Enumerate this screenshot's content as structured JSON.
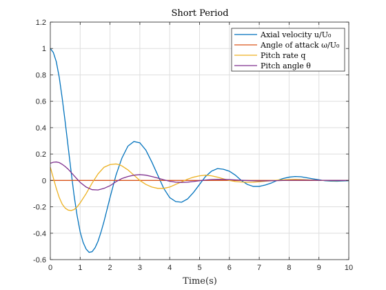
{
  "chart_data": {
    "type": "line",
    "title": "Short Period",
    "xlabel": "Time(s)",
    "ylabel": "",
    "xlim": [
      0,
      10
    ],
    "ylim": [
      -0.6,
      1.2
    ],
    "xticks": [
      0,
      1,
      2,
      3,
      4,
      5,
      6,
      7,
      8,
      9,
      10
    ],
    "yticks": [
      -0.6,
      -0.4,
      -0.2,
      0,
      0.2,
      0.4,
      0.6,
      0.8,
      1,
      1.2
    ],
    "xtick_labels": [
      "0",
      "1",
      "2",
      "3",
      "4",
      "5",
      "6",
      "7",
      "8",
      "9",
      "10"
    ],
    "ytick_labels": [
      "-0.6",
      "-0.4",
      "-0.2",
      "0",
      "0.2",
      "0.4",
      "0.6",
      "0.8",
      "1",
      "1.2"
    ],
    "grid": true,
    "legend_position": "top-right",
    "series": [
      {
        "name": "Axial velocity u/U₀",
        "color": "#0072BD",
        "x": [
          0,
          0.1,
          0.2,
          0.3,
          0.4,
          0.5,
          0.6,
          0.7,
          0.8,
          0.9,
          1.0,
          1.1,
          1.2,
          1.3,
          1.4,
          1.5,
          1.6,
          1.7,
          1.8,
          1.9,
          2.0,
          2.2,
          2.4,
          2.6,
          2.8,
          3.0,
          3.2,
          3.4,
          3.6,
          3.8,
          4.0,
          4.2,
          4.4,
          4.6,
          4.8,
          5.0,
          5.2,
          5.4,
          5.6,
          5.8,
          6.0,
          6.2,
          6.4,
          6.6,
          6.8,
          7.0,
          7.2,
          7.4,
          7.6,
          7.8,
          8.0,
          8.2,
          8.4,
          8.6,
          8.8,
          9.0,
          9.2,
          9.4,
          9.6,
          9.8,
          10.0
        ],
        "y": [
          1.0,
          0.97,
          0.9,
          0.78,
          0.62,
          0.44,
          0.25,
          0.06,
          -0.12,
          -0.27,
          -0.39,
          -0.47,
          -0.52,
          -0.545,
          -0.54,
          -0.51,
          -0.46,
          -0.39,
          -0.31,
          -0.22,
          -0.13,
          0.04,
          0.17,
          0.26,
          0.295,
          0.285,
          0.23,
          0.14,
          0.04,
          -0.06,
          -0.13,
          -0.16,
          -0.165,
          -0.14,
          -0.09,
          -0.03,
          0.03,
          0.07,
          0.09,
          0.085,
          0.07,
          0.04,
          0.0,
          -0.03,
          -0.045,
          -0.045,
          -0.035,
          -0.02,
          0.0,
          0.015,
          0.025,
          0.03,
          0.028,
          0.02,
          0.012,
          0.005,
          -0.002,
          -0.005,
          -0.006,
          -0.004,
          -0.002
        ]
      },
      {
        "name": "Angle of attack ω/U₀",
        "color": "#D95319",
        "x": [
          0,
          10
        ],
        "y": [
          0,
          0
        ]
      },
      {
        "name": "Pitch rate q",
        "color": "#EDB120",
        "x": [
          0,
          0.1,
          0.2,
          0.3,
          0.4,
          0.5,
          0.6,
          0.7,
          0.8,
          0.9,
          1.0,
          1.2,
          1.4,
          1.6,
          1.8,
          2.0,
          2.2,
          2.3,
          2.4,
          2.6,
          2.8,
          3.0,
          3.2,
          3.4,
          3.6,
          3.8,
          4.0,
          4.2,
          4.4,
          4.6,
          4.8,
          5.0,
          5.2,
          5.4,
          5.6,
          5.8,
          6.0,
          6.2,
          6.4,
          6.6,
          6.8,
          7.0,
          7.2,
          7.4,
          7.6,
          7.8,
          8.0,
          8.2,
          8.4,
          8.6,
          8.8,
          9.0,
          9.5,
          10.0
        ],
        "y": [
          0.1,
          0.02,
          -0.06,
          -0.13,
          -0.18,
          -0.21,
          -0.225,
          -0.228,
          -0.22,
          -0.2,
          -0.17,
          -0.1,
          -0.02,
          0.05,
          0.1,
          0.12,
          0.125,
          0.12,
          0.11,
          0.08,
          0.04,
          0.0,
          -0.03,
          -0.05,
          -0.06,
          -0.06,
          -0.05,
          -0.03,
          -0.01,
          0.01,
          0.025,
          0.035,
          0.04,
          0.035,
          0.025,
          0.012,
          0.0,
          -0.008,
          -0.012,
          -0.014,
          -0.013,
          -0.01,
          -0.006,
          -0.002,
          0.002,
          0.005,
          0.007,
          0.008,
          0.007,
          0.005,
          0.003,
          0.001,
          -0.002,
          0.0
        ]
      },
      {
        "name": "Pitch angle θ",
        "color": "#7E2F8E",
        "x": [
          0,
          0.1,
          0.2,
          0.3,
          0.4,
          0.5,
          0.6,
          0.7,
          0.8,
          0.9,
          1.0,
          1.2,
          1.4,
          1.6,
          1.8,
          2.0,
          2.2,
          2.4,
          2.6,
          2.8,
          3.0,
          3.2,
          3.4,
          3.6,
          3.8,
          4.0,
          4.2,
          4.4,
          4.6,
          4.8,
          5.0,
          5.2,
          5.4,
          5.6,
          5.8,
          6.0,
          6.5,
          7.0,
          7.5,
          8.0,
          8.5,
          9.0,
          9.5,
          10.0
        ],
        "y": [
          0.13,
          0.138,
          0.14,
          0.135,
          0.122,
          0.105,
          0.085,
          0.06,
          0.035,
          0.01,
          -0.015,
          -0.05,
          -0.07,
          -0.072,
          -0.06,
          -0.04,
          -0.01,
          0.015,
          0.03,
          0.04,
          0.044,
          0.04,
          0.03,
          0.018,
          0.005,
          -0.006,
          -0.013,
          -0.015,
          -0.013,
          -0.008,
          -0.002,
          0.003,
          0.007,
          0.008,
          0.008,
          0.006,
          0.0,
          -0.004,
          -0.002,
          0.001,
          0.002,
          0.001,
          0.0,
          0.0
        ]
      }
    ]
  }
}
